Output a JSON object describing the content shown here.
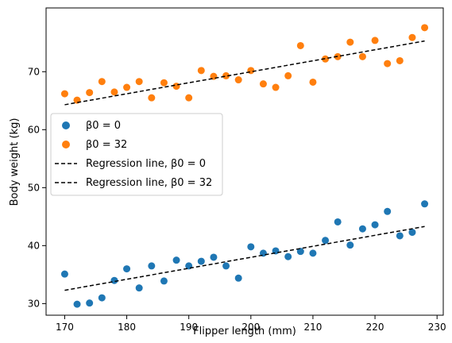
{
  "chart_data": {
    "type": "scatter",
    "xlabel": "Flipper length (mm)",
    "ylabel": "Body weight (kg)",
    "xlim": [
      167,
      231
    ],
    "ylim": [
      28,
      81
    ],
    "xticks": [
      170,
      180,
      190,
      200,
      210,
      220,
      230
    ],
    "yticks": [
      30,
      40,
      50,
      60,
      70
    ],
    "grid": false,
    "legend_position": "center-left",
    "series": [
      {
        "name": "β0 = 0",
        "color": "#1f77b4",
        "points": [
          [
            170,
            35.1
          ],
          [
            172,
            29.9
          ],
          [
            174,
            30.1
          ],
          [
            176,
            31.0
          ],
          [
            178,
            34.0
          ],
          [
            180,
            36.0
          ],
          [
            182,
            32.7
          ],
          [
            184,
            36.5
          ],
          [
            186,
            33.9
          ],
          [
            188,
            37.5
          ],
          [
            190,
            36.5
          ],
          [
            192,
            37.3
          ],
          [
            194,
            38.0
          ],
          [
            196,
            36.5
          ],
          [
            198,
            34.4
          ],
          [
            200,
            39.8
          ],
          [
            202,
            38.7
          ],
          [
            204,
            39.1
          ],
          [
            206,
            38.1
          ],
          [
            208,
            39.0
          ],
          [
            210,
            38.7
          ],
          [
            212,
            40.9
          ],
          [
            214,
            44.1
          ],
          [
            216,
            40.1
          ],
          [
            218,
            42.9
          ],
          [
            220,
            43.6
          ],
          [
            222,
            45.9
          ],
          [
            224,
            41.7
          ],
          [
            226,
            42.3
          ],
          [
            228,
            47.2
          ]
        ]
      },
      {
        "name": "β0 = 32",
        "color": "#ff7f0e",
        "points": [
          [
            170,
            66.2
          ],
          [
            172,
            65.1
          ],
          [
            174,
            66.4
          ],
          [
            176,
            68.3
          ],
          [
            178,
            66.5
          ],
          [
            180,
            67.3
          ],
          [
            182,
            68.3
          ],
          [
            184,
            65.5
          ],
          [
            186,
            68.1
          ],
          [
            188,
            67.5
          ],
          [
            190,
            65.5
          ],
          [
            192,
            70.2
          ],
          [
            194,
            69.2
          ],
          [
            196,
            69.3
          ],
          [
            198,
            68.6
          ],
          [
            200,
            70.2
          ],
          [
            202,
            67.9
          ],
          [
            204,
            67.3
          ],
          [
            206,
            69.3
          ],
          [
            208,
            74.5
          ],
          [
            210,
            68.2
          ],
          [
            212,
            72.2
          ],
          [
            214,
            72.6
          ],
          [
            216,
            75.1
          ],
          [
            218,
            72.6
          ],
          [
            220,
            75.4
          ],
          [
            222,
            71.4
          ],
          [
            224,
            71.9
          ],
          [
            226,
            75.9
          ],
          [
            228,
            77.6
          ]
        ]
      }
    ],
    "lines": [
      {
        "name": "Regression line, β0 = 0",
        "color": "#000000",
        "style": "dashed",
        "x": [
          170,
          228
        ],
        "y": [
          32.3,
          43.3
        ]
      },
      {
        "name": "Regression line, β0 = 32",
        "color": "#000000",
        "style": "dashed",
        "x": [
          170,
          228
        ],
        "y": [
          64.3,
          75.3
        ]
      }
    ]
  }
}
